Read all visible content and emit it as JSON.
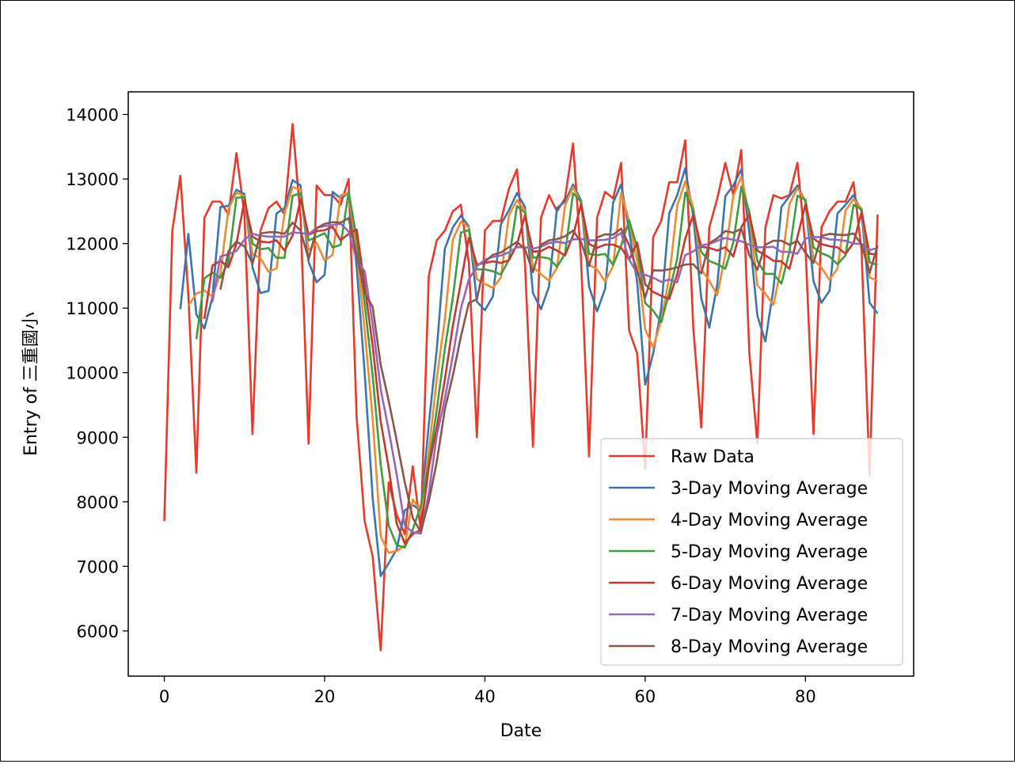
{
  "chart_data": {
    "type": "line",
    "title": "",
    "xlabel": "Date",
    "ylabel": "Entry of 三重國小",
    "xlim": [
      -4.5,
      93.5
    ],
    "ylim": [
      5300,
      14350
    ],
    "xticks": [
      0,
      20,
      40,
      60,
      80
    ],
    "yticks": [
      6000,
      7000,
      8000,
      9000,
      10000,
      11000,
      12000,
      13000,
      14000
    ],
    "grid": false,
    "legend_position": "lower right",
    "colors": {
      "raw": "#e8392a",
      "ma3": "#3a75b0",
      "ma4": "#f28a30",
      "ma5": "#3d9e3d",
      "ma6": "#c8372d",
      "ma7": "#9467bd",
      "ma8": "#8c564b"
    },
    "raw_x_start": 0,
    "raw_values": [
      7700,
      12200,
      13050,
      11200,
      8450,
      12400,
      12650,
      12650,
      12450,
      13400,
      12450,
      9050,
      12200,
      12550,
      12650,
      12450,
      13850,
      12400,
      8900,
      12900,
      12750,
      12750,
      12600,
      13000,
      9300,
      7700,
      7150,
      5700,
      8300,
      7800,
      7500,
      8550,
      7550,
      11500,
      12050,
      12200,
      12500,
      12600,
      11700,
      9000,
      12200,
      12350,
      12350,
      12850,
      13150,
      11700,
      8850,
      12400,
      12750,
      12500,
      12700,
      13550,
      11750,
      8700,
      12400,
      12800,
      12700,
      13250,
      10650,
      10300,
      8500,
      12100,
      12350,
      12950,
      12950,
      13600,
      10700,
      9150,
      12250,
      12700,
      13250,
      12750,
      13450,
      10300,
      8900,
      12250,
      12750,
      12700,
      12750,
      13250,
      11950,
      9050,
      12250,
      12500,
      12650,
      12650,
      12950,
      11900,
      8400,
      12450
    ],
    "series": [
      {
        "name": "Raw Data",
        "key": "raw",
        "window": 1
      },
      {
        "name": "3-Day Moving Average",
        "key": "ma3",
        "window": 3
      },
      {
        "name": "4-Day Moving Average",
        "key": "ma4",
        "window": 4
      },
      {
        "name": "5-Day Moving Average",
        "key": "ma5",
        "window": 5
      },
      {
        "name": "6-Day Moving Average",
        "key": "ma6",
        "window": 6
      },
      {
        "name": "7-Day Moving Average",
        "key": "ma7",
        "window": 7
      },
      {
        "name": "8-Day Moving Average",
        "key": "ma8",
        "window": 8
      }
    ]
  }
}
